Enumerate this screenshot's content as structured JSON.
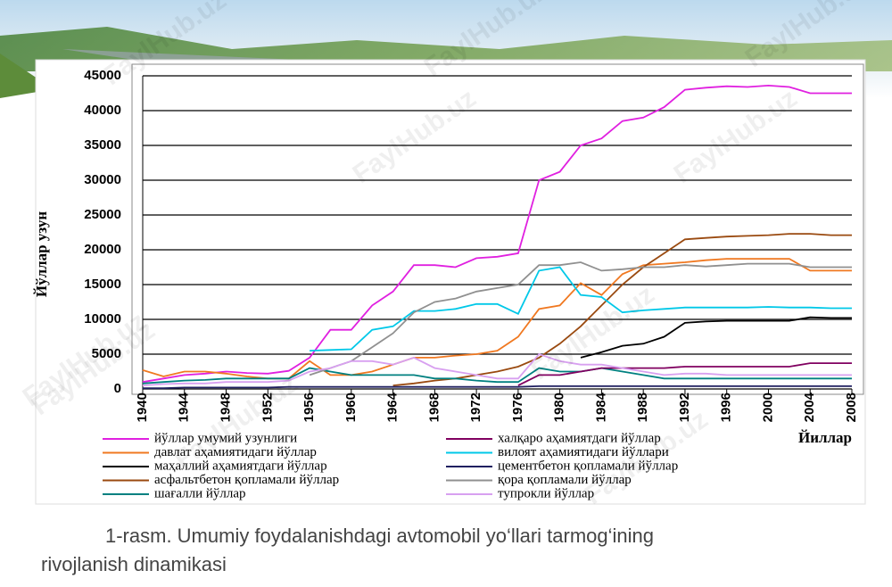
{
  "chart_data": {
    "type": "line",
    "y_label": "Йўллар узун",
    "x_label": "Йиллар",
    "x": [
      1940,
      1942,
      1944,
      1946,
      1948,
      1950,
      1952,
      1954,
      1956,
      1958,
      1960,
      1962,
      1964,
      1966,
      1968,
      1970,
      1972,
      1974,
      1976,
      1978,
      1980,
      1982,
      1984,
      1986,
      1988,
      1990,
      1992,
      1994,
      1996,
      1998,
      2000,
      2002,
      2004,
      2006,
      2008
    ],
    "xlim": [
      1940,
      2008
    ],
    "xticks": [
      1940,
      1944,
      1948,
      1952,
      1956,
      1960,
      1964,
      1968,
      1972,
      1976,
      1980,
      1984,
      1988,
      1992,
      1996,
      2000,
      2004,
      2008
    ],
    "ylim": [
      0,
      45000
    ],
    "yticks": [
      0,
      5000,
      10000,
      15000,
      20000,
      25000,
      30000,
      35000,
      40000,
      45000
    ],
    "grid": true,
    "series": [
      {
        "name": "йўллар умумий узунлиги",
        "color": "#e020e0",
        "values": [
          1000,
          1500,
          2000,
          2200,
          2500,
          2300,
          2200,
          2600,
          4500,
          8500,
          8500,
          12000,
          14000,
          17800,
          17800,
          17500,
          18800,
          19000,
          19500,
          30000,
          31200,
          35000,
          36000,
          38500,
          39000,
          40500,
          43000,
          43300,
          43500,
          43400,
          43600,
          43400,
          42500,
          42500,
          42500
        ]
      },
      {
        "name": "давлат аҳамиятидаги йўллар",
        "color": "#f07820",
        "values": [
          2700,
          1800,
          2500,
          2500,
          2200,
          1800,
          1500,
          1500,
          4000,
          2000,
          2000,
          2500,
          3500,
          4500,
          4500,
          4800,
          5000,
          5500,
          7500,
          11500,
          12000,
          15200,
          13500,
          16500,
          17800,
          18000,
          18200,
          18500,
          18700,
          18700,
          18700,
          18700,
          17000,
          17000,
          17000
        ]
      },
      {
        "name": "маҳаллий аҳамиятдаги йўллар",
        "color": "#000000",
        "values": [
          null,
          null,
          null,
          null,
          null,
          null,
          null,
          null,
          null,
          null,
          null,
          null,
          null,
          null,
          null,
          null,
          null,
          null,
          null,
          null,
          null,
          4500,
          5300,
          6200,
          6500,
          7500,
          9500,
          9700,
          9800,
          9800,
          9800,
          9800,
          10300,
          10200,
          10200
        ]
      },
      {
        "name": "асфальтбетон қопламали йўллар",
        "color": "#9a4a10",
        "values": [
          null,
          null,
          null,
          null,
          null,
          null,
          null,
          null,
          null,
          null,
          null,
          null,
          500,
          800,
          1200,
          1500,
          2000,
          2500,
          3200,
          4500,
          6500,
          9000,
          12000,
          15000,
          17500,
          19500,
          21500,
          21700,
          21900,
          22000,
          22100,
          22300,
          22300,
          22100,
          22100
        ]
      },
      {
        "name": "шағалли йўллар",
        "color": "#008080",
        "values": [
          800,
          1000,
          1200,
          1300,
          1500,
          1500,
          1500,
          1500,
          3000,
          2500,
          2000,
          2000,
          2000,
          2000,
          1500,
          1500,
          1200,
          1000,
          1000,
          3000,
          2500,
          2500,
          3000,
          2500,
          2000,
          1500,
          1500,
          1500,
          1500,
          1500,
          1500,
          1500,
          1500,
          1500,
          1500
        ]
      },
      {
        "name": "халқаро аҳамиятдаги йўллар",
        "color": "#800060",
        "values": [
          null,
          null,
          null,
          null,
          null,
          null,
          null,
          null,
          null,
          null,
          null,
          null,
          null,
          null,
          null,
          null,
          null,
          null,
          500,
          2000,
          2000,
          2500,
          3000,
          3000,
          3000,
          3000,
          3200,
          3200,
          3200,
          3200,
          3200,
          3200,
          3700,
          3700,
          3700
        ]
      },
      {
        "name": "вилоят аҳамиятидаги йўллари",
        "color": "#00c8e8",
        "values": [
          null,
          null,
          null,
          null,
          null,
          null,
          null,
          null,
          5500,
          5600,
          5700,
          8500,
          9000,
          11200,
          11200,
          11500,
          12200,
          12200,
          10800,
          17000,
          17500,
          13500,
          13200,
          11000,
          11300,
          11500,
          11700,
          11700,
          11700,
          11700,
          11800,
          11700,
          11700,
          11600,
          11600
        ]
      },
      {
        "name": "цементбетон қопламали йўллар",
        "color": "#202060",
        "values": [
          100,
          100,
          200,
          200,
          200,
          200,
          200,
          300,
          300,
          300,
          300,
          300,
          300,
          300,
          300,
          300,
          300,
          300,
          300,
          400,
          400,
          400,
          400,
          400,
          400,
          400,
          400,
          400,
          400,
          400,
          400,
          400,
          400,
          400,
          400
        ]
      },
      {
        "name": "қора қопламали йўллар",
        "color": "#909090",
        "values": [
          null,
          null,
          null,
          null,
          null,
          null,
          null,
          null,
          2000,
          3000,
          4000,
          6000,
          8000,
          11000,
          12500,
          13000,
          14000,
          14500,
          15000,
          17800,
          17800,
          18200,
          17000,
          17200,
          17500,
          17500,
          17800,
          17600,
          17800,
          18000,
          18000,
          18000,
          17500,
          17500,
          17500
        ]
      },
      {
        "name": "тупрокли йўллар",
        "color": "#d8a0f0",
        "values": [
          500,
          700,
          800,
          800,
          1000,
          1000,
          1000,
          1200,
          2500,
          3000,
          4000,
          4000,
          3500,
          4500,
          3000,
          2500,
          2000,
          1500,
          1500,
          5000,
          4000,
          3500,
          3500,
          3000,
          2500,
          2000,
          2200,
          2200,
          2000,
          2000,
          2000,
          2000,
          2000,
          2000,
          2000
        ]
      }
    ]
  },
  "caption": [
    "1-rasm. Umumiy foydalanishdagi avtomobil yo‘llari tarmog‘ining",
    "rivojlanish dinamikasi"
  ],
  "watermark": "FaylHub.uz"
}
